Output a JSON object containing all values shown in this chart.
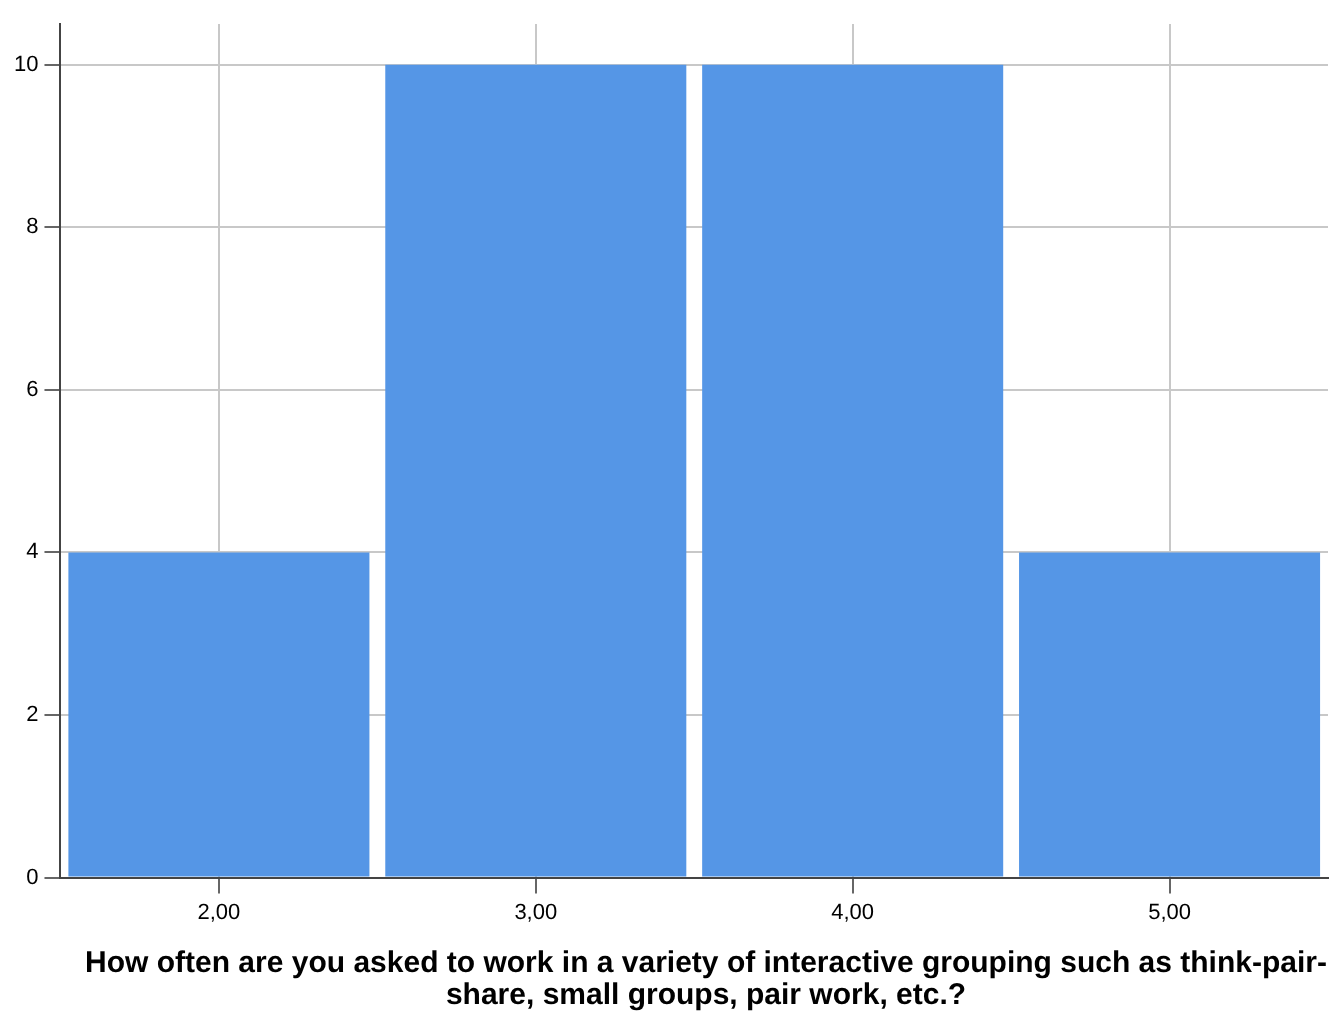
{
  "chart_data": {
    "type": "bar",
    "xlabel": "How often are you asked to work in a variety of interactive grouping such as think-pair-share, small groups, pair work, etc.?",
    "categories": [
      "2,00",
      "3,00",
      "4,00",
      "5,00"
    ],
    "values": [
      4,
      10,
      10,
      4
    ],
    "color": "#5596e6",
    "ylim": [
      0,
      10.5
    ],
    "yticks": [
      0,
      2,
      4,
      6,
      8,
      10
    ],
    "grid": true
  }
}
